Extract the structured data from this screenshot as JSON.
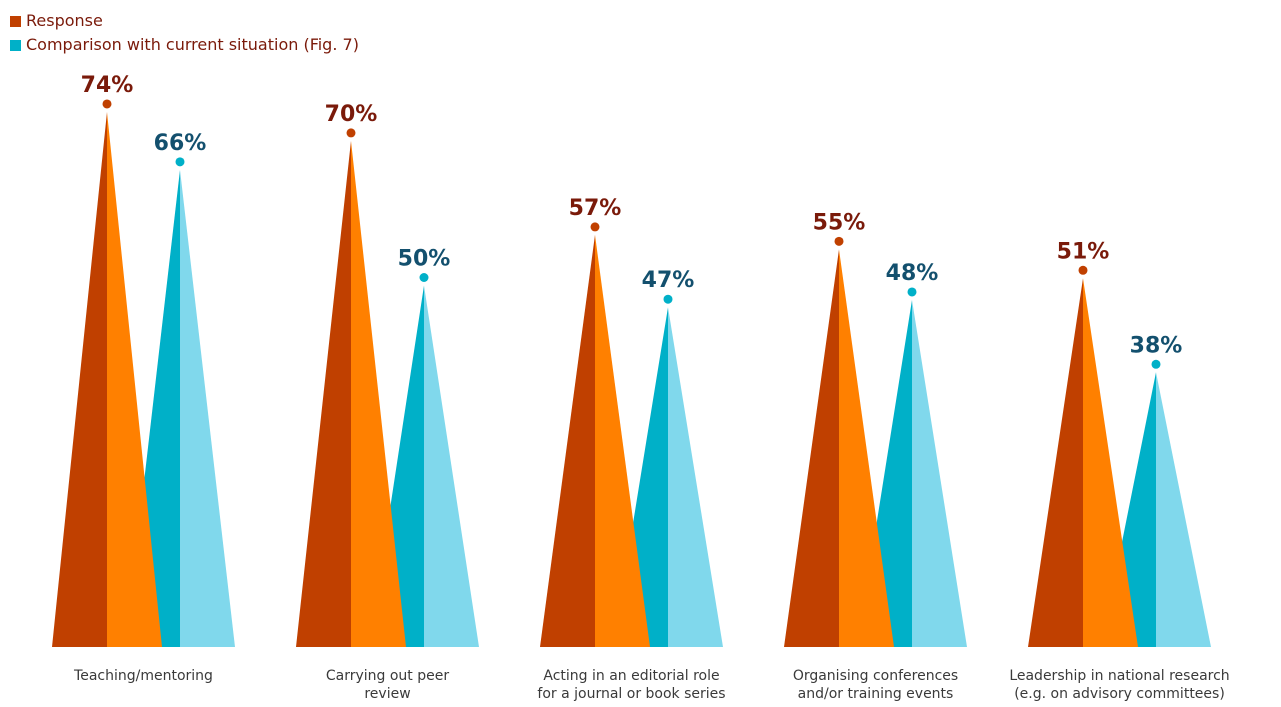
{
  "chart_data": {
    "type": "bar",
    "title": "",
    "categories": [
      [
        "Teaching/mentoring"
      ],
      [
        "Carrying out peer",
        "review"
      ],
      [
        "Acting in an editorial role",
        "for a journal or book series"
      ],
      [
        "Organising conferences",
        "and/or training events"
      ],
      [
        "Leadership in national research",
        "(e.g. on advisory committees)"
      ]
    ],
    "series": [
      {
        "name": "Response",
        "values": [
          74,
          70,
          57,
          55,
          51
        ],
        "labels": [
          "74%",
          "70%",
          "57%",
          "55%",
          "51%"
        ],
        "colors": {
          "dark": "#c04000",
          "light": "#ff8000",
          "label": "#7a1a0a"
        }
      },
      {
        "name": "Comparison with current situation (Fig. 7)",
        "values": [
          66,
          50,
          47,
          48,
          38
        ],
        "labels": [
          "66%",
          "50%",
          "47%",
          "48%",
          "38%"
        ],
        "colors": {
          "dark": "#00b0c8",
          "light": "#80d8ec",
          "label": "#13506e"
        }
      }
    ],
    "ylim": [
      0,
      100
    ],
    "grid": false,
    "legend": "top-left"
  }
}
